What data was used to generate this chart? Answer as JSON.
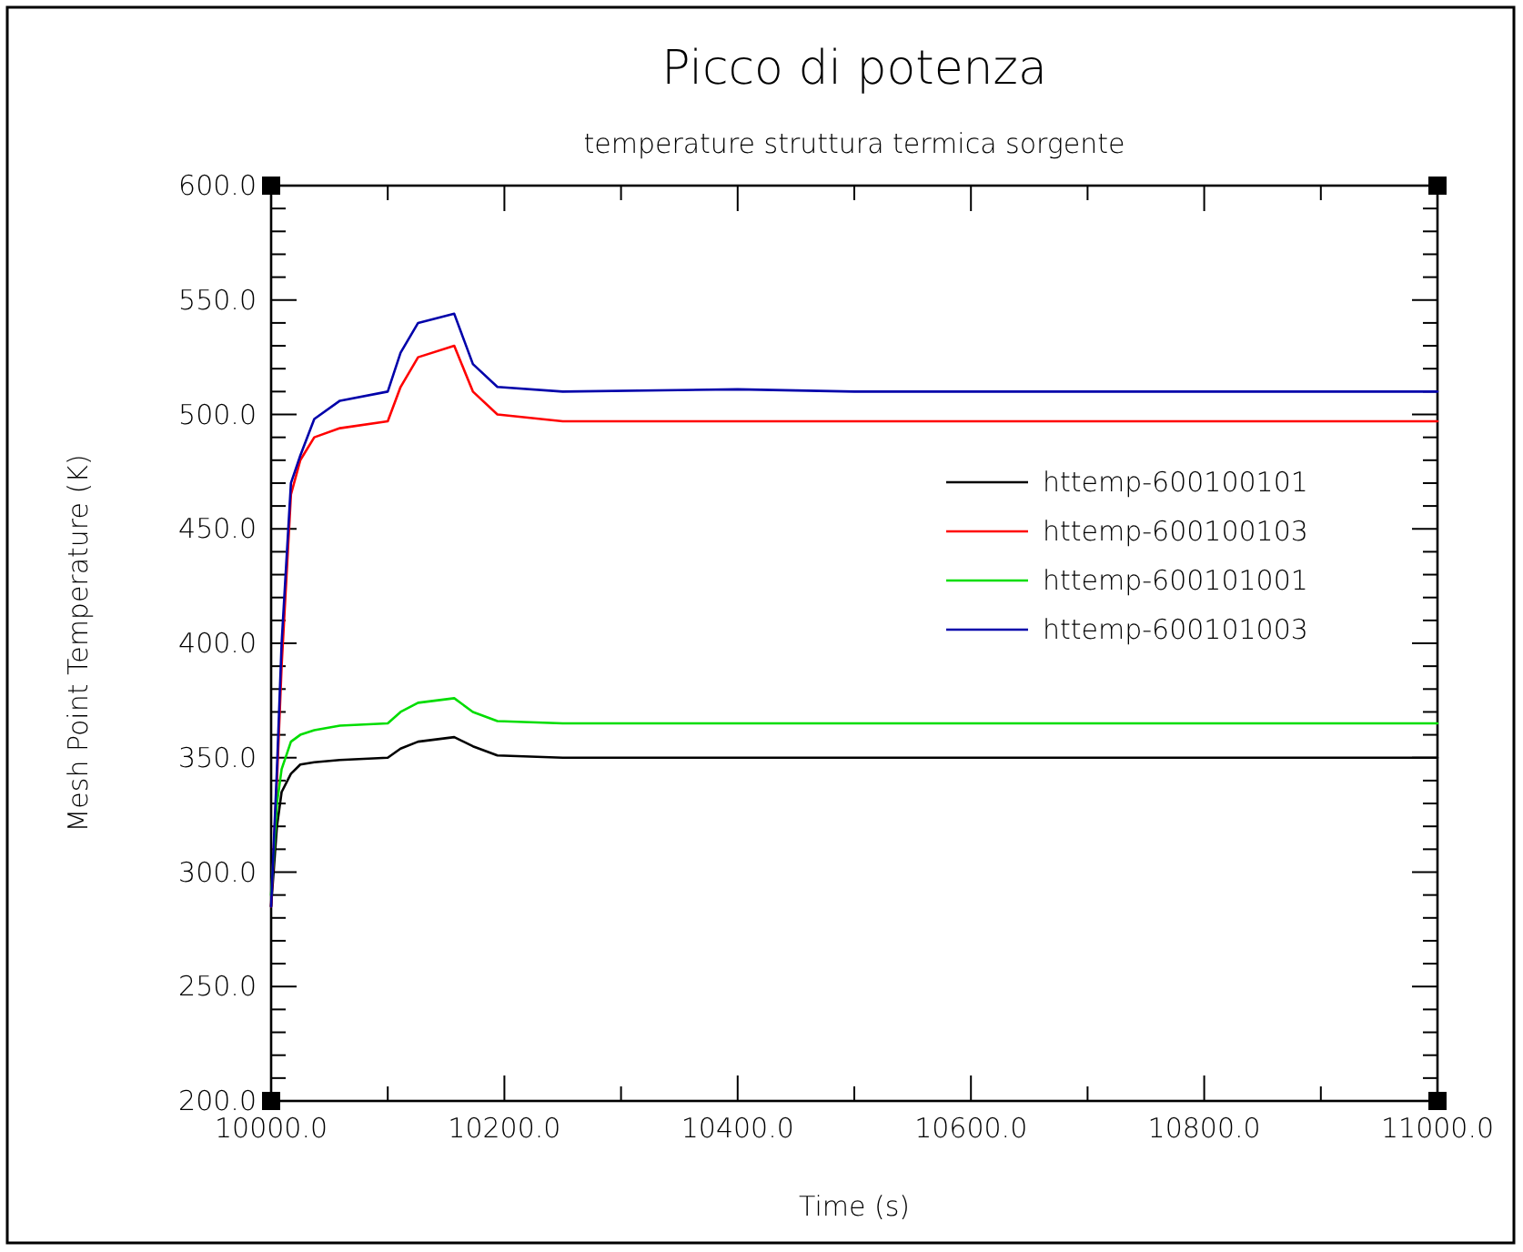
{
  "chart_data": {
    "type": "line",
    "title": "Picco di potenza",
    "subtitle": "temperature struttura termica sorgente",
    "xlabel": "Time (s)",
    "ylabel": "Mesh Point Temperature (K)",
    "x": [
      10000,
      10005,
      10009,
      10017,
      10025,
      10037,
      10059,
      10100,
      10111,
      10126,
      10157,
      10173,
      10194,
      10250,
      10400,
      10500,
      10700,
      11000
    ],
    "series": [
      {
        "name": "httemp-600100101",
        "color": "#000000",
        "values": [
          285,
          320,
          335,
          343,
          347,
          348,
          349,
          350,
          354,
          357,
          359,
          355,
          351,
          350,
          350,
          350,
          350,
          350
        ]
      },
      {
        "name": "httemp-600100103",
        "color": "#ff0000",
        "values": [
          285,
          340,
          390,
          465,
          480,
          490,
          494,
          497,
          512,
          525,
          530,
          510,
          500,
          497,
          497,
          497,
          497,
          497
        ]
      },
      {
        "name": "httemp-600101001",
        "color": "#00dd00",
        "values": [
          290,
          330,
          345,
          357,
          360,
          362,
          364,
          365,
          370,
          374,
          376,
          370,
          366,
          365,
          365,
          365,
          365,
          365
        ]
      },
      {
        "name": "httemp-600101003",
        "color": "#0000aa",
        "values": [
          285,
          345,
          400,
          470,
          482,
          498,
          506,
          510,
          527,
          540,
          544,
          522,
          512,
          510,
          511,
          510,
          510,
          510
        ]
      }
    ],
    "xlim": [
      10000,
      11000
    ],
    "ylim": [
      200,
      600
    ],
    "xticks": [
      {
        "value": 10000,
        "label": "10000.0"
      },
      {
        "value": 10100,
        "label": null
      },
      {
        "value": 10200,
        "label": "10200.0"
      },
      {
        "value": 10300,
        "label": null
      },
      {
        "value": 10400,
        "label": "10400.0"
      },
      {
        "value": 10500,
        "label": null
      },
      {
        "value": 10600,
        "label": "10600.0"
      },
      {
        "value": 10700,
        "label": null
      },
      {
        "value": 10800,
        "label": "10800.0"
      },
      {
        "value": 10900,
        "label": null
      },
      {
        "value": 11000,
        "label": "11000.0"
      }
    ],
    "yticks": [
      {
        "value": 200,
        "label": "200.0"
      },
      {
        "value": 210,
        "label": null
      },
      {
        "value": 220,
        "label": null
      },
      {
        "value": 230,
        "label": null
      },
      {
        "value": 240,
        "label": null
      },
      {
        "value": 250,
        "label": "250.0"
      },
      {
        "value": 260,
        "label": null
      },
      {
        "value": 270,
        "label": null
      },
      {
        "value": 280,
        "label": null
      },
      {
        "value": 290,
        "label": null
      },
      {
        "value": 300,
        "label": "300.0"
      },
      {
        "value": 310,
        "label": null
      },
      {
        "value": 320,
        "label": null
      },
      {
        "value": 330,
        "label": null
      },
      {
        "value": 340,
        "label": null
      },
      {
        "value": 350,
        "label": "350.0"
      },
      {
        "value": 360,
        "label": null
      },
      {
        "value": 370,
        "label": null
      },
      {
        "value": 380,
        "label": null
      },
      {
        "value": 390,
        "label": null
      },
      {
        "value": 400,
        "label": "400.0"
      },
      {
        "value": 410,
        "label": null
      },
      {
        "value": 420,
        "label": null
      },
      {
        "value": 430,
        "label": null
      },
      {
        "value": 440,
        "label": null
      },
      {
        "value": 450,
        "label": "450.0"
      },
      {
        "value": 460,
        "label": null
      },
      {
        "value": 470,
        "label": null
      },
      {
        "value": 480,
        "label": null
      },
      {
        "value": 490,
        "label": null
      },
      {
        "value": 500,
        "label": "500.0"
      },
      {
        "value": 510,
        "label": null
      },
      {
        "value": 520,
        "label": null
      },
      {
        "value": 530,
        "label": null
      },
      {
        "value": 540,
        "label": null
      },
      {
        "value": 550,
        "label": "550.0"
      },
      {
        "value": 560,
        "label": null
      },
      {
        "value": 570,
        "label": null
      },
      {
        "value": 580,
        "label": null
      },
      {
        "value": 590,
        "label": null
      },
      {
        "value": 600,
        "label": "600.0"
      }
    ],
    "grid": false,
    "legend": "right",
    "marker": "none",
    "line_style": "solid"
  }
}
